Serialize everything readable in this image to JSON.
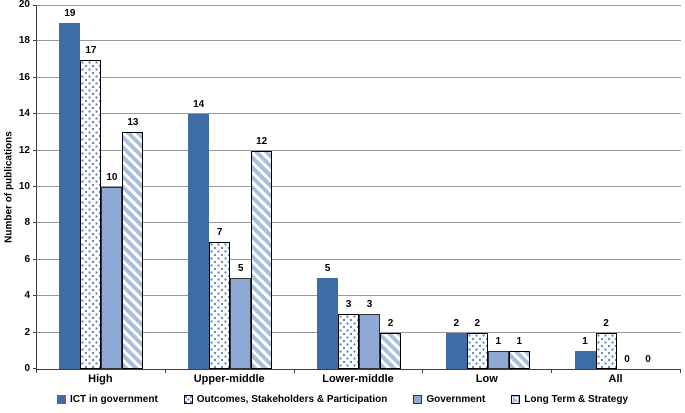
{
  "chart_data": {
    "type": "bar",
    "title": "",
    "xlabel": "",
    "ylabel": "Number of publications",
    "ylim": [
      0,
      20
    ],
    "yticks": [
      0,
      2,
      4,
      6,
      8,
      10,
      12,
      14,
      16,
      18,
      20
    ],
    "grid": true,
    "legend_position": "bottom",
    "data_labels": true,
    "categories": [
      "High",
      "Upper-middle",
      "Lower-middle",
      "Low",
      "All"
    ],
    "series": [
      {
        "name": "ICT in government",
        "pattern": "solid-dark",
        "color": "#3e6da5",
        "values": [
          19,
          14,
          5,
          2,
          1
        ]
      },
      {
        "name": "Outcomes, Stakeholders & Participation",
        "pattern": "dots",
        "color": "#5f86b8",
        "values": [
          17,
          7,
          3,
          2,
          2
        ]
      },
      {
        "name": "Government",
        "pattern": "solid-light",
        "color": "#8ea9d6",
        "values": [
          10,
          5,
          3,
          1,
          0
        ]
      },
      {
        "name": "Long Term & Strategy",
        "pattern": "hatch",
        "color": "#aabedd",
        "values": [
          13,
          12,
          2,
          1,
          0
        ]
      }
    ]
  },
  "colors": {
    "background": "#ffffff",
    "gridline": "#9b9b9b",
    "axis": "#3f3f3f",
    "text": "#000000"
  }
}
